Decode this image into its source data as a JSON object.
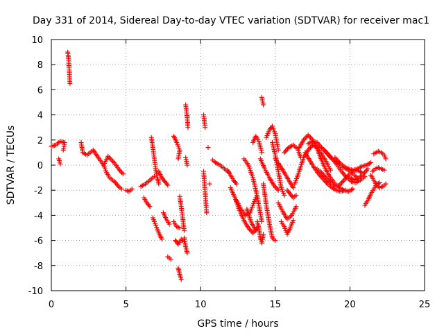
{
  "chart_data": {
    "type": "scatter",
    "title": "Day 331 of 2014, Sidereal Day-to-day VTEC variation (SDTVAR) for receiver mac1",
    "xlabel": "GPS time / hours",
    "ylabel": "SDTVAR / TECUs",
    "xlim": [
      0,
      25
    ],
    "ylim": [
      -10,
      10
    ],
    "xticks": [
      "0",
      "5",
      "10",
      "15",
      "20",
      "25"
    ],
    "yticks": [
      "-10",
      "-8",
      "-6",
      "-4",
      "-2",
      "0",
      "2",
      "4",
      "6",
      "8",
      "10"
    ],
    "grid": true,
    "marker": "plus",
    "color": "#ff0000",
    "segments": [
      {
        "x": [
          0.0,
          0.3,
          0.6,
          0.9,
          0.8
        ],
        "y": [
          1.5,
          1.6,
          1.9,
          1.8,
          1.2
        ]
      },
      {
        "x": [
          0.5,
          0.6
        ],
        "y": [
          0.5,
          0.1
        ]
      },
      {
        "x": [
          1.1,
          1.15,
          1.2,
          1.25
        ],
        "y": [
          9.0,
          8.5,
          7.5,
          6.5
        ]
      },
      {
        "x": [
          2.0,
          2.1,
          2.4,
          2.8,
          3.2,
          3.5,
          3.8,
          4.2,
          4.5,
          4.8
        ],
        "y": [
          1.8,
          1.0,
          0.8,
          1.2,
          0.5,
          0.0,
          0.7,
          0.2,
          -0.3,
          -0.7
        ]
      },
      {
        "x": [
          3.5,
          3.7,
          3.9,
          4.1,
          4.3,
          4.5,
          4.7
        ],
        "y": [
          0.0,
          -0.6,
          -1.0,
          -1.2,
          -1.4,
          -1.7,
          -1.9
        ]
      },
      {
        "x": [
          5.0,
          5.2,
          5.4
        ],
        "y": [
          -2.0,
          -2.1,
          -1.9
        ]
      },
      {
        "x": [
          6.0,
          6.3,
          6.6,
          6.9
        ],
        "y": [
          -1.7,
          -1.5,
          -1.2,
          -0.9
        ]
      },
      {
        "x": [
          6.2,
          6.4,
          6.6
        ],
        "y": [
          -2.6,
          -3.0,
          -3.3
        ]
      },
      {
        "x": [
          6.7,
          6.8,
          6.9,
          7.0,
          7.1,
          7.2
        ],
        "y": [
          2.2,
          1.4,
          0.5,
          -0.4,
          -1.0,
          -1.5
        ]
      },
      {
        "x": [
          6.8,
          7.0,
          7.2,
          7.4
        ],
        "y": [
          -4.2,
          -4.8,
          -5.4,
          -5.9
        ]
      },
      {
        "x": [
          7.2,
          7.4,
          7.6,
          7.8
        ],
        "y": [
          -0.5,
          -1.0,
          -1.3,
          -1.6
        ]
      },
      {
        "x": [
          7.5,
          7.7,
          7.9
        ],
        "y": [
          -3.8,
          -4.3,
          -4.7
        ]
      },
      {
        "x": [
          7.8,
          8.0
        ],
        "y": [
          -7.3,
          -7.5
        ]
      },
      {
        "x": [
          8.2,
          8.4,
          8.6,
          8.5
        ],
        "y": [
          2.3,
          1.8,
          1.2,
          0.5
        ]
      },
      {
        "x": [
          8.3,
          8.5,
          8.7,
          8.9
        ],
        "y": [
          -6.0,
          -6.3,
          -5.9,
          -6.1
        ]
      },
      {
        "x": [
          8.2,
          8.4,
          8.6
        ],
        "y": [
          -4.5,
          -4.9,
          -5.0
        ]
      },
      {
        "x": [
          8.6,
          8.7,
          8.8,
          8.9
        ],
        "y": [
          -2.5,
          -3.3,
          -4.2,
          -5.2
        ]
      },
      {
        "x": [
          8.5,
          8.6,
          8.7
        ],
        "y": [
          -8.2,
          -8.7,
          -9.1
        ]
      },
      {
        "x": [
          8.9,
          9.0,
          9.1
        ],
        "y": [
          -5.8,
          -6.5,
          -7.0
        ]
      },
      {
        "x": [
          9.0,
          9.1,
          9.15
        ],
        "y": [
          4.8,
          3.8,
          3.0
        ]
      },
      {
        "x": [
          9.0,
          9.1
        ],
        "y": [
          0.6,
          0.0
        ]
      },
      {
        "x": [
          10.2,
          10.3
        ],
        "y": [
          4.0,
          3.0
        ]
      },
      {
        "x": [
          10.5
        ],
        "y": [
          1.4
        ]
      },
      {
        "x": [
          10.6
        ],
        "y": [
          -1.5
        ]
      },
      {
        "x": [
          10.2,
          10.4
        ],
        "y": [
          -0.5,
          -3.8
        ]
      },
      {
        "x": [
          10.8,
          11.0,
          11.3,
          11.6,
          11.9
        ],
        "y": [
          0.4,
          0.2,
          0.0,
          -0.3,
          -0.6
        ]
      },
      {
        "x": [
          11.8,
          12.0,
          12.2,
          12.4
        ],
        "y": [
          -0.4,
          -0.8,
          -1.2,
          -1.5
        ]
      },
      {
        "x": [
          12.0,
          12.3,
          12.6,
          12.9,
          13.2,
          13.5,
          13.8
        ],
        "y": [
          -1.8,
          -2.6,
          -3.6,
          -4.4,
          -5.0,
          -5.4,
          -5.0
        ]
      },
      {
        "x": [
          12.4,
          12.7,
          13.0,
          13.3,
          13.5,
          13.7
        ],
        "y": [
          -2.8,
          -3.5,
          -4.0,
          -3.8,
          -3.2,
          -2.6
        ]
      },
      {
        "x": [
          12.9,
          13.2,
          13.5,
          13.7,
          13.9,
          14.1
        ],
        "y": [
          0.5,
          0.0,
          -1.0,
          -2.0,
          -3.2,
          -4.5
        ]
      },
      {
        "x": [
          13.1,
          13.4,
          13.7
        ],
        "y": [
          -3.5,
          -4.6,
          -5.2
        ]
      },
      {
        "x": [
          13.5,
          13.7,
          13.9,
          14.1
        ],
        "y": [
          1.8,
          2.3,
          1.9,
          1.0
        ]
      },
      {
        "x": [
          13.8,
          13.9,
          14.0,
          14.1,
          14.2
        ],
        "y": [
          -4.5,
          -5.0,
          -5.8,
          -6.2,
          -5.5
        ]
      },
      {
        "x": [
          14.1,
          14.15,
          14.2
        ],
        "y": [
          5.4,
          5.1,
          4.8
        ]
      },
      {
        "x": [
          14.0,
          14.3,
          14.6,
          14.9,
          15.2
        ],
        "y": [
          0.5,
          -0.3,
          -1.0,
          -1.6,
          -2.0
        ]
      },
      {
        "x": [
          14.2,
          14.4,
          14.6,
          14.8,
          15.0
        ],
        "y": [
          -1.5,
          -3.2,
          -4.6,
          -5.8,
          -6.0
        ]
      },
      {
        "x": [
          14.4,
          14.6,
          14.8,
          15.0,
          15.2
        ],
        "y": [
          2.2,
          2.8,
          3.1,
          2.5,
          1.2
        ]
      },
      {
        "x": [
          14.8,
          15.0,
          15.2,
          15.4,
          15.6
        ],
        "y": [
          1.8,
          0.8,
          -0.5,
          -1.8,
          -2.4
        ]
      },
      {
        "x": [
          15.0,
          15.3,
          15.6,
          15.9,
          16.2
        ],
        "y": [
          0.5,
          0.0,
          -0.6,
          -1.2,
          -1.8
        ]
      },
      {
        "x": [
          15.2,
          15.5,
          15.8,
          16.1,
          16.4
        ],
        "y": [
          -3.0,
          -3.7,
          -4.3,
          -4.0,
          -3.3
        ]
      },
      {
        "x": [
          15.4,
          15.6,
          15.8,
          16.0,
          16.2
        ],
        "y": [
          -4.5,
          -4.9,
          -5.5,
          -5.0,
          -4.4
        ]
      },
      {
        "x": [
          15.6,
          15.9,
          16.2,
          16.5,
          16.7
        ],
        "y": [
          1.0,
          1.4,
          1.6,
          1.3,
          0.6
        ]
      },
      {
        "x": [
          15.8,
          16.0,
          16.2,
          16.4
        ],
        "y": [
          -2.0,
          -2.3,
          -2.6,
          -2.4
        ]
      },
      {
        "x": [
          16.3,
          16.6,
          16.9,
          17.2,
          17.5,
          17.8,
          18.1,
          18.4,
          18.7
        ],
        "y": [
          -1.5,
          -0.5,
          0.6,
          1.2,
          1.6,
          1.4,
          0.9,
          0.3,
          -0.4
        ]
      },
      {
        "x": [
          16.6,
          16.9,
          17.2,
          17.5,
          17.8,
          18.1,
          18.4,
          18.7,
          19.0,
          19.3,
          19.6,
          19.9,
          20.2
        ],
        "y": [
          1.4,
          2.0,
          2.4,
          2.0,
          1.3,
          0.4,
          -0.4,
          -1.0,
          -1.5,
          -1.8,
          -2.0,
          -2.1,
          -1.9
        ]
      },
      {
        "x": [
          17.0,
          17.3,
          17.6,
          17.9,
          18.2,
          18.5,
          18.8,
          19.1,
          19.4,
          19.7
        ],
        "y": [
          1.0,
          0.4,
          -0.2,
          -0.7,
          -1.1,
          -1.5,
          -1.8,
          -2.0,
          -2.1,
          -2.0
        ]
      },
      {
        "x": [
          17.2,
          17.5,
          17.8,
          18.1,
          18.4,
          18.7,
          19.0,
          19.3,
          19.6,
          19.9,
          20.2,
          20.5
        ],
        "y": [
          1.7,
          1.9,
          1.8,
          1.4,
          1.0,
          0.6,
          0.3,
          0.1,
          -0.2,
          -0.4,
          -0.7,
          -1.0
        ]
      },
      {
        "x": [
          17.8,
          18.1,
          18.4,
          18.7,
          19.0,
          19.3,
          19.6,
          19.9,
          20.2,
          20.5,
          20.8
        ],
        "y": [
          -0.3,
          -0.6,
          -1.0,
          -1.4,
          -1.7,
          -1.6,
          -1.2,
          -0.8,
          -0.5,
          -0.4,
          -0.6
        ]
      },
      {
        "x": [
          18.3,
          18.6,
          18.9,
          19.2,
          19.5,
          19.8,
          20.1,
          20.4,
          20.7,
          21.0
        ],
        "y": [
          1.2,
          0.8,
          0.4,
          -0.1,
          -0.6,
          -1.0,
          -1.3,
          -1.4,
          -1.2,
          -0.9
        ]
      },
      {
        "x": [
          19.0,
          19.3,
          19.6,
          19.9,
          20.2,
          20.5,
          20.8,
          21.1,
          21.4
        ],
        "y": [
          0.6,
          0.2,
          -0.1,
          -0.3,
          -0.4,
          -0.3,
          -0.1,
          0.0,
          0.2
        ]
      },
      {
        "x": [
          20.0,
          20.3,
          20.6,
          20.9,
          21.2
        ],
        "y": [
          -1.0,
          -1.2,
          -1.0,
          -0.7,
          -0.3
        ]
      },
      {
        "x": [
          21.0,
          21.2,
          21.4,
          21.6,
          21.8,
          22.0
        ],
        "y": [
          -3.2,
          -2.8,
          -2.3,
          -1.9,
          -1.5,
          -1.4
        ]
      },
      {
        "x": [
          21.4,
          21.6,
          21.8,
          22.0,
          22.2,
          22.4
        ],
        "y": [
          -0.8,
          -1.2,
          -1.6,
          -1.8,
          -1.7,
          -1.5
        ]
      },
      {
        "x": [
          21.6,
          21.9,
          22.1,
          22.3,
          22.4
        ],
        "y": [
          0.9,
          1.1,
          1.0,
          0.8,
          0.5
        ]
      },
      {
        "x": [
          21.5,
          21.7,
          21.9,
          22.1,
          22.3
        ],
        "y": [
          -0.5,
          -0.3,
          -0.2,
          -0.3,
          -0.4
        ]
      }
    ]
  }
}
